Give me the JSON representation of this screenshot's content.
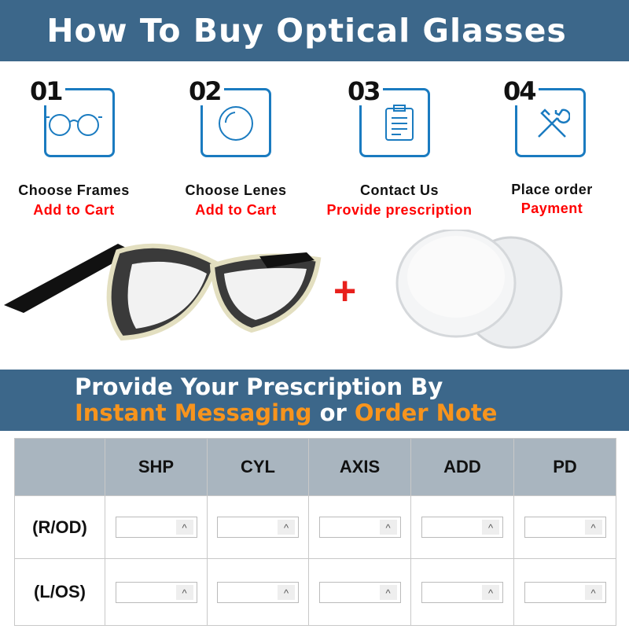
{
  "header": {
    "title": "How To Buy Optical Glasses"
  },
  "steps": [
    {
      "number": "01",
      "icon": "glasses-icon",
      "title": "Choose Frames",
      "action": "Add to Cart"
    },
    {
      "number": "02",
      "icon": "lens-icon",
      "title": "Choose Lenes",
      "action": "Add to Cart"
    },
    {
      "number": "03",
      "icon": "clipboard-icon",
      "title": "Contact Us",
      "action": "Provide prescription"
    },
    {
      "number": "04",
      "icon": "tools-icon",
      "title": "Place order",
      "action": "Payment"
    }
  ],
  "products": {
    "plus": "+"
  },
  "prescription": {
    "line1": "Provide Your Prescription By",
    "highlight1": "Instant Messaging",
    "connector": " or ",
    "highlight2": "Order Note"
  },
  "table": {
    "columns": [
      "SHP",
      "CYL",
      "AXIS",
      "ADD",
      "PD"
    ],
    "rows": [
      "(R/OD)",
      "(L/OS)"
    ],
    "spinner": "^"
  },
  "colors": {
    "band": "#3c678a",
    "accent": "#1a7bc0",
    "red": "#ff0000",
    "orange": "#f7941d",
    "table_header": "#a9b5bf"
  }
}
